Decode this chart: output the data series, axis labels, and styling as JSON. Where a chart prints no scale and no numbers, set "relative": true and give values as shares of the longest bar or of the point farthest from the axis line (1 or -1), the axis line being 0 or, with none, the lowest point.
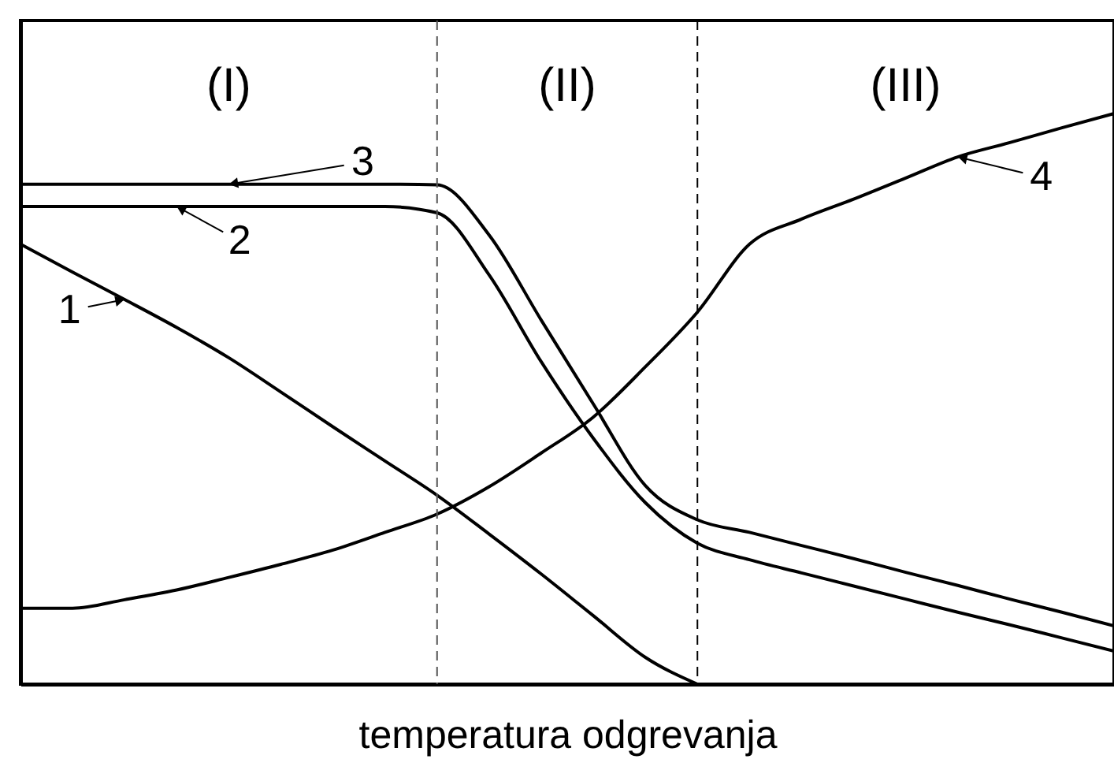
{
  "chart_data": {
    "type": "line",
    "relative": true,
    "xlabel": "temperatura odgrevanja",
    "tick_labels": false,
    "grid": false,
    "marker": "none",
    "line_style": "solid",
    "categories": [
      null,
      null,
      null,
      null,
      null,
      null,
      null,
      null,
      null,
      null,
      null,
      null,
      null,
      null,
      null,
      null,
      null,
      null,
      null,
      null,
      null,
      null
    ],
    "series": [
      {
        "color": "#000000",
        "values": [
          0.771,
          0.722,
          0.674,
          0.625,
          0.572,
          0.512,
          0.451,
          0.391,
          0.331,
          0.263,
          0.193,
          0.12,
          0.047,
          0,
          null,
          null,
          null,
          null,
          null,
          null,
          null,
          null
        ]
      },
      {
        "color": "#000000",
        "values": [
          0.837,
          0.837,
          0.837,
          0.837,
          0.837,
          0.837,
          0.837,
          0.837,
          0.826,
          0.717,
          0.565,
          0.431,
          0.318,
          0.247,
          0.218,
          0.195,
          0.172,
          0.149,
          0.126,
          0.104,
          0.081,
          0.058
        ]
      },
      {
        "color": "#000000",
        "values": [
          0.876,
          0.876,
          0.876,
          0.876,
          0.876,
          0.876,
          0.876,
          0.876,
          0.875,
          0.787,
          0.638,
          0.491,
          0.348,
          0.288,
          0.266,
          0.243,
          0.22,
          0.196,
          0.173,
          0.149,
          0.126,
          0.102
        ]
      },
      {
        "color": "#000000",
        "values": [
          0.133,
          0.133,
          0.148,
          0.165,
          0.187,
          0.21,
          0.235,
          0.266,
          0.298,
          0.346,
          0.405,
          0.468,
          0.556,
          0.652,
          0.771,
          0.815,
          0.85,
          0.887,
          0.924,
          0.949,
          0.975,
          1
        ]
      }
    ],
    "annotations": [
      "(I)",
      "(II)",
      "(III)",
      "1",
      "2",
      "3",
      "4"
    ]
  }
}
